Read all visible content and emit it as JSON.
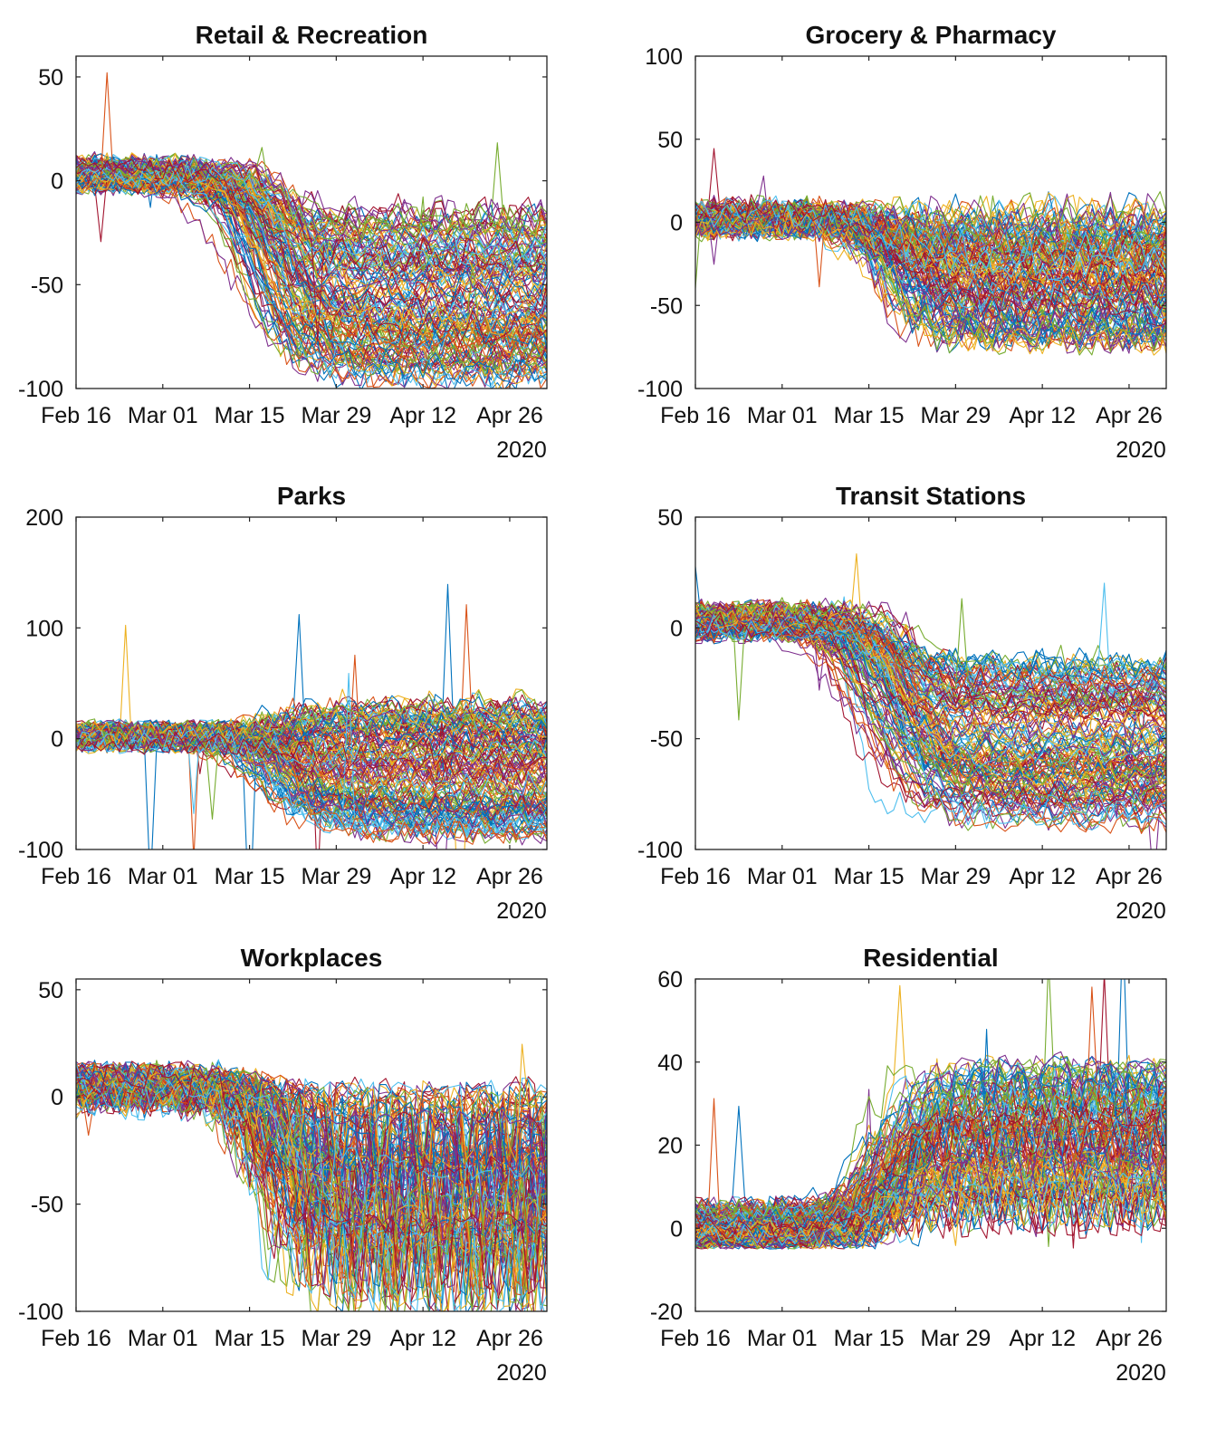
{
  "figure": {
    "date_labels": [
      "Feb 16",
      "Mar 01",
      "Mar 15",
      "Mar 29",
      "Apr 12",
      "Apr 26"
    ],
    "year_label": "2020",
    "x_start": "2020-02-16",
    "x_end": "2020-05-02",
    "num_lines_per_panel": 140,
    "palette": [
      "#0072BD",
      "#D95319",
      "#EDB120",
      "#7E2F8E",
      "#77AC30",
      "#4DBEEE",
      "#A2142F"
    ]
  },
  "chart_data": [
    {
      "type": "line",
      "title": "Retail & Recreation",
      "ylim": [
        -100,
        60
      ],
      "yticks": [
        50,
        0,
        -50,
        -100
      ],
      "x_tick_dates": [
        "2020-02-16",
        "2020-03-01",
        "2020-03-15",
        "2020-03-29",
        "2020-04-12",
        "2020-04-26"
      ],
      "baseline": 3,
      "plateau_range": [
        -95,
        -15
      ],
      "drop_window": [
        "2020-03-12",
        "2020-03-24"
      ],
      "weekly_amplitude": 10,
      "noise": 5
    },
    {
      "type": "line",
      "title": "Grocery & Pharmacy",
      "ylim": [
        -100,
        100
      ],
      "yticks": [
        100,
        50,
        0,
        -50,
        -100
      ],
      "x_tick_dates": [
        "2020-02-16",
        "2020-03-01",
        "2020-03-15",
        "2020-03-29",
        "2020-04-12",
        "2020-04-26"
      ],
      "baseline": 2,
      "plateau_range": [
        -70,
        5
      ],
      "drop_window": [
        "2020-03-15",
        "2020-03-23"
      ],
      "weekly_amplitude": 14,
      "noise": 8
    },
    {
      "type": "line",
      "title": "Parks",
      "ylim": [
        -100,
        200
      ],
      "yticks": [
        200,
        100,
        0,
        -100
      ],
      "x_tick_dates": [
        "2020-02-16",
        "2020-03-01",
        "2020-03-15",
        "2020-03-29",
        "2020-04-12",
        "2020-04-26"
      ],
      "baseline": 2,
      "plateau_range": [
        -85,
        30
      ],
      "drop_window": [
        "2020-03-14",
        "2020-03-25"
      ],
      "weekly_amplitude": 8,
      "noise": 11
    },
    {
      "type": "line",
      "title": "Transit Stations",
      "ylim": [
        -100,
        50
      ],
      "yticks": [
        50,
        0,
        -50,
        -100
      ],
      "x_tick_dates": [
        "2020-02-16",
        "2020-03-01",
        "2020-03-15",
        "2020-03-29",
        "2020-04-12",
        "2020-04-26"
      ],
      "baseline": 3,
      "plateau_range": [
        -88,
        -15
      ],
      "drop_window": [
        "2020-03-11",
        "2020-03-25"
      ],
      "weekly_amplitude": 6,
      "noise": 5
    },
    {
      "type": "line",
      "title": "Workplaces",
      "ylim": [
        -100,
        55
      ],
      "yticks": [
        50,
        0,
        -50,
        -100
      ],
      "x_tick_dates": [
        "2020-02-16",
        "2020-03-01",
        "2020-03-15",
        "2020-03-29",
        "2020-04-12",
        "2020-04-26"
      ],
      "baseline": 4,
      "plateau_range": [
        -85,
        -5
      ],
      "drop_window": [
        "2020-03-14",
        "2020-03-25"
      ],
      "weekly_amplitude": 28,
      "noise": 5
    },
    {
      "type": "line",
      "title": "Residential",
      "ylim": [
        -20,
        60
      ],
      "yticks": [
        60,
        40,
        20,
        0,
        -20
      ],
      "x_tick_dates": [
        "2020-02-16",
        "2020-03-01",
        "2020-03-15",
        "2020-03-29",
        "2020-04-12",
        "2020-04-26"
      ],
      "baseline": 0,
      "plateau_range": [
        5,
        38
      ],
      "drop_window": [
        "2020-03-12",
        "2020-03-24"
      ],
      "weekly_amplitude": 7,
      "noise": 2.5
    }
  ]
}
